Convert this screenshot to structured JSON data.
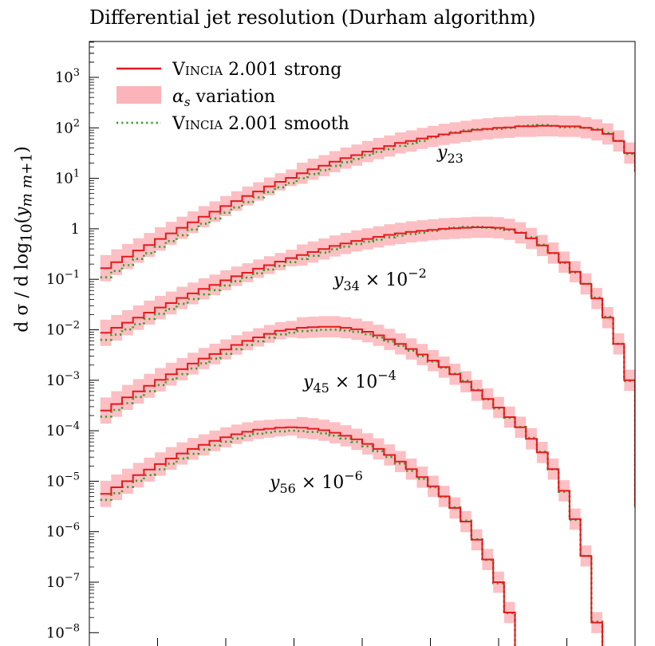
{
  "chart_data": {
    "type": "line",
    "title": "Differential jet resolution (Durham algorithm)",
    "ylabel": "d σ / d log10(y_{m m+1})",
    "yscale": "log",
    "ylim": [
      1e-08,
      5000
    ],
    "xlim": [
      -8,
      0
    ],
    "x_tick_labels_shown": false,
    "y_tick_labels": [
      {
        "value": 1000,
        "label": "10",
        "exp": "3"
      },
      {
        "value": 100,
        "label": "10",
        "exp": "2"
      },
      {
        "value": 10,
        "label": "10",
        "exp": "1"
      },
      {
        "value": 1,
        "label": "1",
        "exp": ""
      },
      {
        "value": 0.1,
        "label": "10",
        "exp": "−1"
      },
      {
        "value": 0.01,
        "label": "10",
        "exp": "−2"
      },
      {
        "value": 0.001,
        "label": "10",
        "exp": "−3"
      },
      {
        "value": 0.0001,
        "label": "10",
        "exp": "−4"
      },
      {
        "value": 1e-05,
        "label": "10",
        "exp": "−5"
      },
      {
        "value": 1e-06,
        "label": "10",
        "exp": "−6"
      },
      {
        "value": 1e-07,
        "label": "10",
        "exp": "−7"
      },
      {
        "value": 1e-08,
        "label": "10",
        "exp": "−8"
      }
    ],
    "legend": {
      "placement": "top-left",
      "entries": [
        {
          "label_prefix": "Vincia",
          "label_suffix": " 2.001 strong",
          "style": "line",
          "color": "#e41a1c"
        },
        {
          "label_prefix": "α",
          "label_sub": "s",
          "label_suffix": " variation",
          "style": "band",
          "color": "#fbb4b9"
        },
        {
          "label_prefix": "Vincia",
          "label_suffix": " 2.001 smooth",
          "style": "dotted",
          "color": "#33a02c"
        }
      ]
    },
    "colors": {
      "strong": "#e41a1c",
      "band": "#fbb4b9",
      "smooth": "#33a02c"
    },
    "bins_start": -7.84,
    "bin_width": 0.16,
    "series": [
      {
        "name": "y23",
        "annotation": {
          "base": "y",
          "sub": "23",
          "factor": ""
        },
        "log10_values": [
          -0.78,
          -0.66,
          -0.55,
          -0.43,
          -0.32,
          -0.2,
          -0.09,
          0.02,
          0.13,
          0.24,
          0.34,
          0.45,
          0.55,
          0.65,
          0.74,
          0.84,
          0.93,
          1.01,
          1.1,
          1.18,
          1.25,
          1.33,
          1.4,
          1.46,
          1.53,
          1.59,
          1.64,
          1.7,
          1.74,
          1.79,
          1.83,
          1.87,
          1.9,
          1.93,
          1.96,
          1.98,
          2.0,
          2.01,
          2.03,
          2.03,
          2.04,
          2.04,
          2.03,
          2.03,
          2.0,
          1.96,
          1.88,
          1.74,
          1.5,
          1.15,
          -0.43
        ],
        "smooth_offset": -0.18
      },
      {
        "name": "y34 × 10^-2",
        "annotation": {
          "base": "y",
          "sub": "34",
          "factor": "10",
          "exp": "−2"
        },
        "log10_values": [
          -2.06,
          -1.96,
          -1.86,
          -1.76,
          -1.66,
          -1.56,
          -1.47,
          -1.37,
          -1.28,
          -1.19,
          -1.11,
          -1.02,
          -0.94,
          -0.87,
          -0.79,
          -0.72,
          -0.65,
          -0.58,
          -0.52,
          -0.46,
          -0.4,
          -0.34,
          -0.29,
          -0.24,
          -0.2,
          -0.16,
          -0.12,
          -0.09,
          -0.06,
          -0.04,
          -0.02,
          -0.0,
          0.01,
          0.02,
          0.03,
          0.03,
          0.02,
          -0.01,
          -0.08,
          -0.19,
          -0.33,
          -0.48,
          -0.66,
          -0.85,
          -1.09,
          -1.38,
          -1.76,
          -2.28,
          -3.0,
          -5.5,
          -8.0
        ],
        "smooth_offset": -0.14
      },
      {
        "name": "y45 × 10^-4",
        "annotation": {
          "base": "y",
          "sub": "45",
          "factor": "10",
          "exp": "−4"
        },
        "log10_values": [
          -3.6,
          -3.47,
          -3.34,
          -3.22,
          -3.11,
          -2.99,
          -2.88,
          -2.78,
          -2.67,
          -2.57,
          -2.48,
          -2.39,
          -2.3,
          -2.22,
          -2.15,
          -2.08,
          -2.02,
          -1.99,
          -1.96,
          -1.95,
          -1.94,
          -1.94,
          -1.96,
          -1.99,
          -2.04,
          -2.11,
          -2.19,
          -2.28,
          -2.38,
          -2.49,
          -2.61,
          -2.74,
          -2.88,
          -3.03,
          -3.2,
          -3.37,
          -3.54,
          -3.73,
          -3.93,
          -4.16,
          -4.43,
          -4.76,
          -5.19,
          -5.75,
          -6.48,
          -7.8,
          -8.0,
          -8.0,
          -8.0,
          -8.0,
          -8.0
        ],
        "smooth_offset": -0.12
      },
      {
        "name": "y56 × 10^-6",
        "annotation": {
          "base": "y",
          "sub": "56",
          "factor": "10",
          "exp": "−6"
        },
        "log10_values": [
          -5.25,
          -5.12,
          -5.0,
          -4.88,
          -4.77,
          -4.66,
          -4.55,
          -4.45,
          -4.36,
          -4.28,
          -4.2,
          -4.13,
          -4.07,
          -4.02,
          -3.98,
          -3.96,
          -3.94,
          -3.93,
          -3.94,
          -3.96,
          -3.99,
          -4.04,
          -4.1,
          -4.17,
          -4.26,
          -4.36,
          -4.48,
          -4.61,
          -4.76,
          -4.92,
          -5.1,
          -5.3,
          -5.53,
          -5.8,
          -6.16,
          -6.55,
          -7.0,
          -7.6,
          -8.0,
          -8.0,
          -8.0,
          -8.0,
          -8.0,
          -8.0,
          -8.0,
          -8.0,
          -8.0,
          -8.0,
          -8.0,
          -8.0,
          -8.0
        ],
        "smooth_offset": -0.12
      }
    ]
  }
}
